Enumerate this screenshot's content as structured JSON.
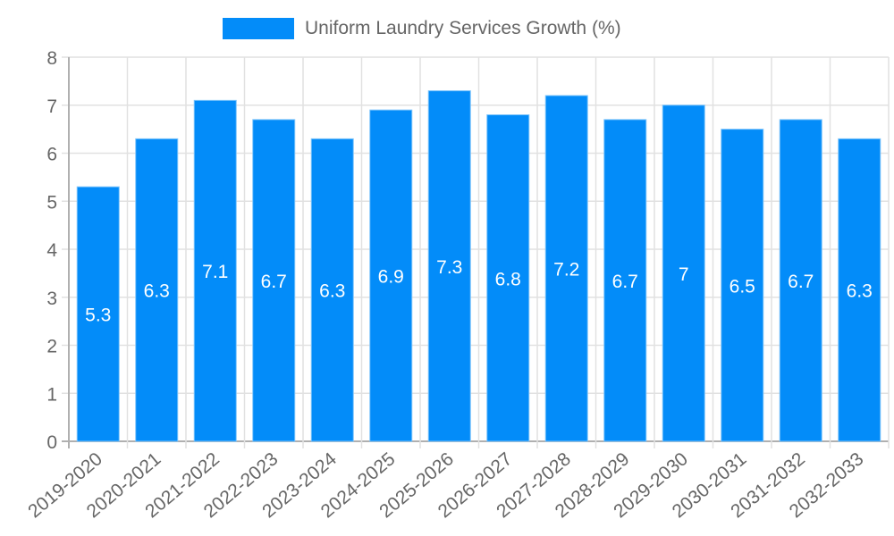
{
  "legend": {
    "label": "Uniform Laundry Services Growth (%)",
    "color": "#038cf9"
  },
  "chart_data": {
    "type": "bar",
    "title": "",
    "xlabel": "",
    "ylabel": "",
    "ylim": [
      0,
      8
    ],
    "yticks": [
      0,
      1,
      2,
      3,
      4,
      5,
      6,
      7,
      8
    ],
    "grid": true,
    "legend_position": "top",
    "categories": [
      "2019-2020",
      "2020-2021",
      "2021-2022",
      "2022-2023",
      "2023-2024",
      "2024-2025",
      "2025-2026",
      "2026-2027",
      "2027-2028",
      "2028-2029",
      "2029-2030",
      "2030-2031",
      "2031-2032",
      "2032-2033"
    ],
    "series": [
      {
        "name": "Uniform Laundry Services Growth (%)",
        "color": "#038cf9",
        "values": [
          5.3,
          6.3,
          7.1,
          6.7,
          6.3,
          6.9,
          7.3,
          6.8,
          7.2,
          6.7,
          7,
          6.5,
          6.7,
          6.3
        ],
        "data_labels": [
          "5.3",
          "6.3",
          "7.1",
          "6.7",
          "6.3",
          "6.9",
          "7.3",
          "6.8",
          "7.2",
          "6.7",
          "7",
          "6.5",
          "6.7",
          "6.3"
        ]
      }
    ]
  }
}
